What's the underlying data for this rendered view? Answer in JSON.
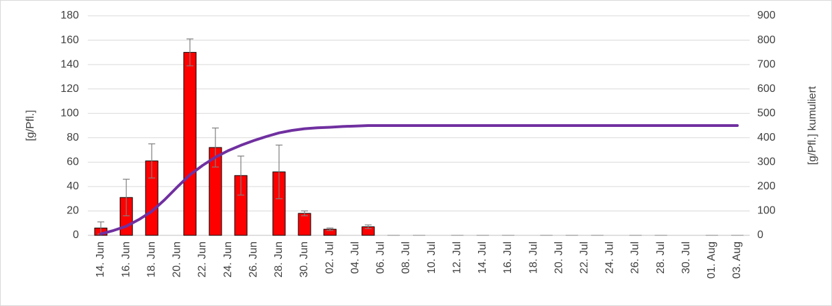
{
  "chart_data": {
    "type": "bar_line",
    "categories": [
      "14. Jun",
      null,
      "16. Jun",
      null,
      "18. Jun",
      null,
      "20. Jun",
      null,
      "22. Jun",
      null,
      "24. Jun",
      null,
      "26. Jun",
      null,
      "28. Jun",
      null,
      "30. Jun",
      null,
      "02. Jul",
      null,
      "04. Jul",
      null,
      "06. Jul",
      null,
      "08. Jul",
      null,
      "10. Jul",
      null,
      "12. Jul",
      null,
      "14. Jul",
      null,
      "16. Jul",
      null,
      "18. Jul",
      null,
      "20. Jul",
      null,
      "22. Jul",
      null,
      "24. Jul",
      null,
      "26. Jul",
      null,
      "28. Jul",
      null,
      "30. Jul",
      null,
      "01. Aug",
      null,
      "03. Aug"
    ],
    "series": [
      {
        "type": "bar",
        "color": "#ff0000",
        "error_color": "#7f7f7f",
        "values": [
          6,
          null,
          31,
          null,
          61,
          null,
          null,
          150,
          null,
          72,
          null,
          49,
          null,
          null,
          52,
          null,
          18,
          null,
          5,
          null,
          null,
          7,
          null,
          0,
          null,
          0,
          null,
          null,
          0,
          null,
          0,
          null,
          0,
          null,
          null,
          0,
          null,
          0,
          null,
          0,
          null,
          null,
          0,
          null,
          0,
          null,
          null,
          null,
          0,
          null,
          0
        ],
        "errors": [
          5,
          null,
          15,
          null,
          14,
          null,
          null,
          11,
          null,
          16,
          null,
          16,
          null,
          null,
          22,
          null,
          2,
          null,
          1,
          null,
          null,
          1.5,
          null,
          0,
          null,
          0,
          null,
          null,
          0,
          null,
          0,
          null,
          0,
          null,
          null,
          0,
          null,
          0,
          null,
          0,
          null,
          null,
          0,
          null,
          0,
          null,
          null,
          null,
          0,
          null,
          0
        ]
      },
      {
        "type": "line",
        "axis": "y2",
        "color": "#7030a0",
        "values": [
          6,
          20,
          37,
          65,
          98,
          145,
          198,
          248,
          287,
          320,
          347,
          369,
          388,
          405,
          420,
          430,
          437,
          441,
          443,
          446,
          448,
          450,
          450,
          450,
          450,
          450,
          450,
          450,
          450,
          450,
          450,
          450,
          450,
          450,
          450,
          450,
          450,
          450,
          450,
          450,
          450,
          450,
          450,
          450,
          450,
          450,
          450,
          450,
          450,
          450,
          450
        ]
      }
    ],
    "y_label": "[g/Pfl.]",
    "y2_label": "[g/Pfl.] kumuliert",
    "ylim": [
      0,
      180
    ],
    "yticks": [
      0,
      20,
      40,
      60,
      80,
      100,
      120,
      140,
      160,
      180
    ],
    "y2lim": [
      0,
      900
    ],
    "y2ticks": [
      0,
      100,
      200,
      300,
      400,
      500,
      600,
      700,
      800,
      900
    ],
    "grid": true
  }
}
